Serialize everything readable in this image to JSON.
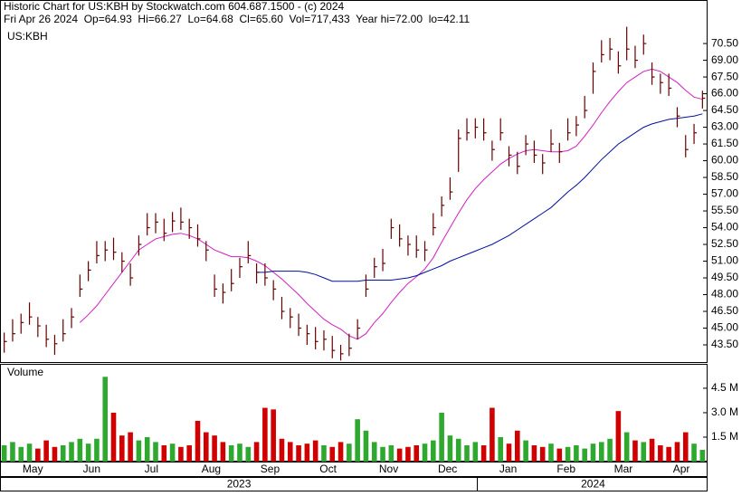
{
  "header": {
    "title": "Historic Chart for US:KBH by Stockwatch.com 604.687.1500 - (c) 2024",
    "subtitle": "Fri Apr 26 2024  Op=64.93  Hi=66.27  Lo=64.68  Cl=65.60  Vol=717,433  Year hi=72.00  lo=42.11"
  },
  "chart_data": [
    {
      "type": "ohlc",
      "symbol": "US:KBH",
      "bar_color": "#660000",
      "xlim": [
        -0.5,
        83.5
      ],
      "ylim": [
        41.96,
        74.4
      ],
      "yticks": [
        {
          "value": 43.5,
          "label": "43.50"
        },
        {
          "value": 45,
          "label": "45.00"
        },
        {
          "value": 46.5,
          "label": "46.50"
        },
        {
          "value": 48,
          "label": "48.00"
        },
        {
          "value": 49.5,
          "label": "49.50"
        },
        {
          "value": 51,
          "label": "51.00"
        },
        {
          "value": 52.5,
          "label": "52.50"
        },
        {
          "value": 54,
          "label": "54.00"
        },
        {
          "value": 55.5,
          "label": "55.50"
        },
        {
          "value": 57,
          "label": "57.00"
        },
        {
          "value": 58.5,
          "label": "58.50"
        },
        {
          "value": 60,
          "label": "60.00"
        },
        {
          "value": 61.5,
          "label": "61.50"
        },
        {
          "value": 63,
          "label": "63.00"
        },
        {
          "value": 64.5,
          "label": "64.50"
        },
        {
          "value": 66,
          "label": "66.00"
        },
        {
          "value": 67.5,
          "label": "67.50"
        },
        {
          "value": 69,
          "label": "69.00"
        },
        {
          "value": 70.5,
          "label": "70.50"
        }
      ],
      "high": [
        44.6,
        45.8,
        46.3,
        47.3,
        46,
        45.3,
        44.4,
        45.8,
        46.8,
        49.8,
        51,
        52.8,
        52.8,
        53.1,
        51.8,
        50.8,
        53.3,
        55.3,
        55.3,
        54.8,
        55.4,
        55.8,
        54.8,
        54.3,
        52.8,
        49.8,
        49,
        50.3,
        51.3,
        52.8,
        50.8,
        50.8,
        49.3,
        47.8,
        46.8,
        46.3,
        45.3,
        45.1,
        44.8,
        44.3,
        43.5,
        44.5,
        45.8,
        49.8,
        51.3,
        52.1,
        54.8,
        54.3,
        53.3,
        53.3,
        52.8,
        55.3,
        56.8,
        58.5,
        62.8,
        63.8,
        63.8,
        63.8,
        61.8,
        63.8,
        61.3,
        60.8,
        62.3,
        61.8,
        60.6,
        62.8,
        61.6,
        63.8,
        64,
        65.8,
        68.8,
        70.8,
        71,
        69.8,
        72,
        70.3,
        71.3,
        68.8,
        67.8,
        67.8,
        64.8,
        62.3,
        63.3,
        66.27
      ],
      "low": [
        42.8,
        43.8,
        44.5,
        45.3,
        44.2,
        43.3,
        42.6,
        43.8,
        45,
        47.8,
        49.2,
        50.8,
        51,
        51.1,
        50,
        48.8,
        51.5,
        53.3,
        53.5,
        52.8,
        53.6,
        53.8,
        53,
        52.3,
        51,
        47.8,
        47.2,
        48.3,
        49.5,
        50.8,
        49,
        48.8,
        47.5,
        45.8,
        45,
        44.3,
        43.5,
        43.1,
        43,
        42.3,
        42.1,
        42.5,
        44,
        47.8,
        49.5,
        50.1,
        53,
        52.3,
        51.5,
        51.3,
        51,
        53.3,
        55,
        56.5,
        59,
        61.8,
        62,
        61.8,
        60,
        61.8,
        59.5,
        58.8,
        60.5,
        59.8,
        58.8,
        60.8,
        59.8,
        61.8,
        62.2,
        63.8,
        66,
        68.8,
        69,
        67.8,
        69,
        68.3,
        69.5,
        66.8,
        66,
        65.8,
        63,
        60.3,
        61.5,
        64.68
      ],
      "close": [
        43.8,
        44.5,
        45.5,
        46,
        45.2,
        44,
        43.6,
        44.5,
        46,
        48.5,
        50.2,
        51.5,
        52,
        51.8,
        51,
        49.5,
        52.5,
        54,
        54.5,
        53.5,
        54.6,
        54.5,
        54,
        53,
        52,
        48.5,
        48.2,
        49,
        50.5,
        51.5,
        50,
        49.5,
        48.5,
        46.5,
        46,
        45,
        44.5,
        43.8,
        44,
        43,
        42.7,
        43.2,
        45,
        48.5,
        50.5,
        50.8,
        54,
        53,
        52.5,
        52,
        52,
        54,
        56,
        57.2,
        62,
        62.5,
        63,
        62.5,
        61,
        62.5,
        60.5,
        59.5,
        61.5,
        60.5,
        59.8,
        61.5,
        60.8,
        62.5,
        63.2,
        64.5,
        68,
        69.5,
        70,
        68.5,
        70,
        69,
        70.5,
        67.5,
        67,
        66.5,
        64,
        61,
        62.5,
        65.6
      ],
      "lines": [
        {
          "color": "#d020c0",
          "values": [
            null,
            null,
            null,
            null,
            null,
            null,
            null,
            null,
            null,
            45.5,
            46.2,
            47,
            48,
            49,
            50,
            51,
            52,
            52.5,
            53,
            53.2,
            53.4,
            53.5,
            53.3,
            53,
            52.5,
            52,
            51.7,
            51.4,
            51.4,
            51.3,
            51,
            50.6,
            50,
            49.4,
            48.7,
            48,
            47.2,
            46.5,
            45.8,
            45.3,
            44.9,
            44.3,
            44,
            44.5,
            45.5,
            46.3,
            47.3,
            48.2,
            49,
            49.6,
            50.3,
            51.3,
            52.7,
            54,
            55.3,
            56.5,
            57.5,
            58.3,
            59,
            59.7,
            60.2,
            60.6,
            60.9,
            61,
            60.9,
            60.8,
            60.8,
            60.9,
            61.3,
            62.2,
            63.2,
            64.3,
            65.3,
            66.2,
            67,
            67.5,
            68,
            68.2,
            68,
            67.5,
            67,
            66.3,
            65.7,
            65.5
          ]
        },
        {
          "color": "#0010a0",
          "values": [
            null,
            null,
            null,
            null,
            null,
            null,
            null,
            null,
            null,
            null,
            null,
            null,
            null,
            null,
            null,
            null,
            null,
            null,
            null,
            null,
            null,
            null,
            null,
            null,
            null,
            null,
            null,
            null,
            null,
            null,
            50,
            50,
            50.1,
            50.1,
            50.1,
            50.1,
            50,
            49.8,
            49.5,
            49.2,
            49.2,
            49.2,
            49.2,
            49.3,
            49.3,
            49.3,
            49.3,
            49.4,
            49.5,
            49.7,
            50,
            50.3,
            50.6,
            51,
            51.3,
            51.6,
            51.9,
            52.2,
            52.5,
            52.9,
            53.3,
            53.8,
            54.3,
            54.8,
            55.3,
            55.8,
            56.5,
            57.2,
            57.8,
            58.5,
            59.3,
            60.1,
            60.8,
            61.5,
            62,
            62.5,
            63,
            63.3,
            63.5,
            63.7,
            63.8,
            63.9,
            64,
            64.2
          ]
        }
      ]
    },
    {
      "type": "bar",
      "title": "Volume",
      "up_color": "#2ea82e",
      "down_color": "#d00000",
      "xlim": [
        -0.5,
        83.5
      ],
      "ylim": [
        0,
        5.94
      ],
      "yticks": [
        {
          "value": 1.5,
          "label": "1.5 M"
        },
        {
          "value": 3,
          "label": "3.0 M"
        },
        {
          "value": 4.5,
          "label": "4.5 M"
        }
      ],
      "values": [
        1.0,
        1.2,
        0.9,
        1.1,
        0.8,
        1.3,
        0.9,
        1.0,
        1.2,
        1.4,
        1.1,
        1.4,
        5.2,
        3.0,
        1.6,
        1.8,
        1.3,
        1.5,
        1.2,
        1.0,
        1.1,
        0.9,
        1.0,
        2.5,
        1.8,
        1.6,
        1.2,
        1.0,
        1.1,
        0.9,
        1.2,
        3.3,
        3.2,
        1.4,
        1.2,
        1.0,
        1.1,
        1.3,
        1.0,
        0.9,
        1.2,
        1.1,
        2.6,
        1.9,
        1.2,
        0.9,
        1.0,
        0.8,
        0.9,
        1.0,
        1.1,
        1.3,
        3.0,
        1.6,
        1.4,
        1.0,
        1.2,
        1.0,
        3.3,
        1.5,
        1.1,
        1.9,
        1.3,
        1.0,
        0.9,
        1.1,
        0.8,
        0.9,
        1.0,
        0.8,
        1.1,
        1.2,
        1.4,
        3.1,
        1.8,
        1.3,
        1.2,
        1.4,
        1.0,
        0.9,
        1.2,
        1.8,
        1.1,
        0.72
      ],
      "xticks": [
        {
          "value": 3.4,
          "label": "May"
        },
        {
          "value": 10.4,
          "label": "Jun"
        },
        {
          "value": 17.5,
          "label": "Jul"
        },
        {
          "value": 24.6,
          "label": "Aug"
        },
        {
          "value": 31.6,
          "label": "Sep"
        },
        {
          "value": 38.5,
          "label": "Oct"
        },
        {
          "value": 45.7,
          "label": "Nov"
        },
        {
          "value": 52.7,
          "label": "Dec"
        },
        {
          "value": 59.9,
          "label": "Jan"
        },
        {
          "value": 66.8,
          "label": "Feb"
        },
        {
          "value": 73.6,
          "label": "Mar"
        },
        {
          "value": 80.5,
          "label": "Apr"
        }
      ],
      "year_ticks": [
        {
          "value": 27.9,
          "label": "2023"
        },
        {
          "value": 70,
          "label": "2024"
        }
      ]
    }
  ]
}
